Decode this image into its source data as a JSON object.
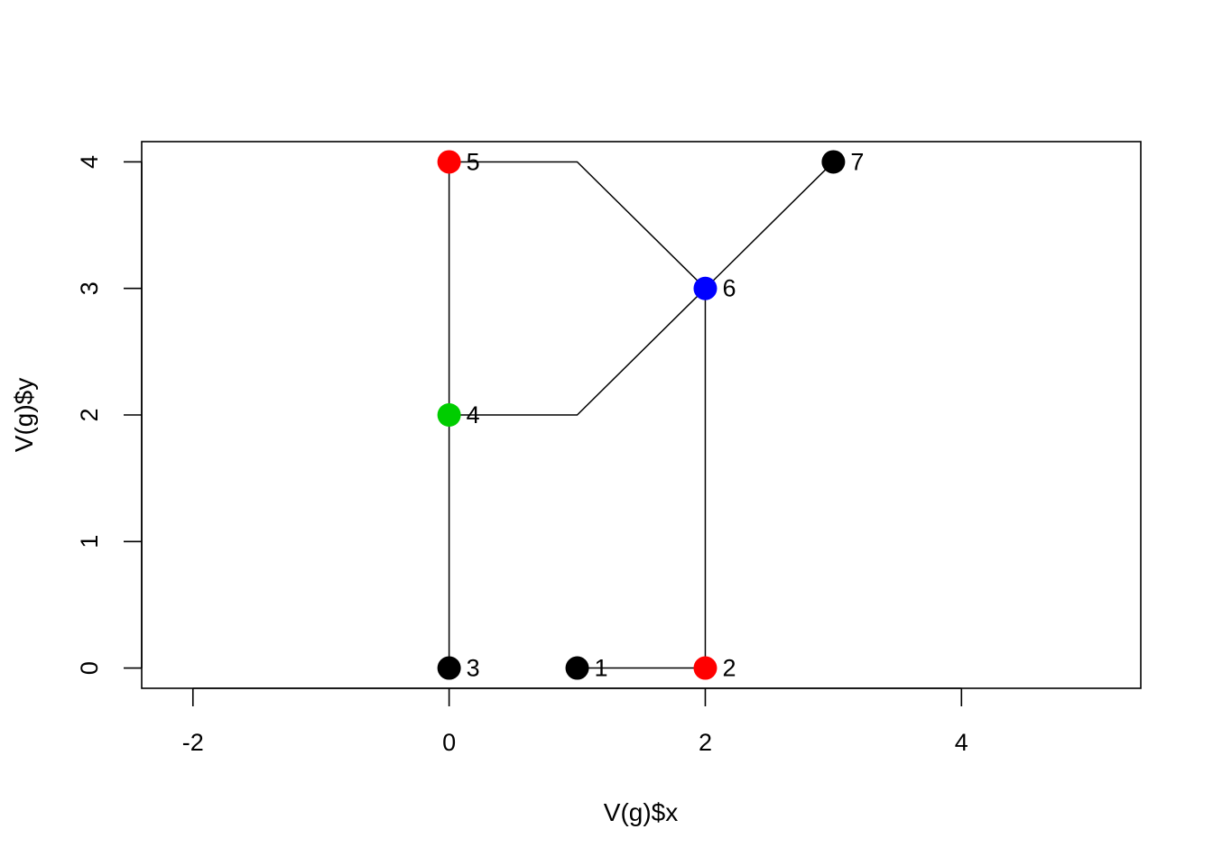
{
  "chart_data": {
    "type": "scatter",
    "xlabel": "V(g)$x",
    "ylabel": "V(g)$y",
    "xlim": [
      -2.4,
      5.4
    ],
    "ylim": [
      -0.16,
      4.16
    ],
    "x_ticks": [
      -2,
      0,
      2,
      4
    ],
    "y_ticks": [
      0,
      1,
      2,
      3,
      4
    ],
    "x_tick_labels": [
      "-2",
      "0",
      "2",
      "4"
    ],
    "y_tick_labels": [
      "0",
      "1",
      "2",
      "3",
      "4"
    ],
    "grid": false,
    "nodes": [
      {
        "label": "1",
        "x": 1,
        "y": 0,
        "color": "#000000"
      },
      {
        "label": "2",
        "x": 2,
        "y": 0,
        "color": "#ff0000"
      },
      {
        "label": "3",
        "x": 0,
        "y": 0,
        "color": "#000000"
      },
      {
        "label": "4",
        "x": 0,
        "y": 2,
        "color": "#00cd00"
      },
      {
        "label": "5",
        "x": 0,
        "y": 4,
        "color": "#ff0000"
      },
      {
        "label": "6",
        "x": 2,
        "y": 3,
        "color": "#0000ff"
      },
      {
        "label": "7",
        "x": 3,
        "y": 4,
        "color": "#000000"
      }
    ],
    "edges": [
      {
        "points": [
          [
            1,
            0
          ],
          [
            2,
            0
          ]
        ]
      },
      {
        "points": [
          [
            2,
            0
          ],
          [
            2,
            3
          ]
        ]
      },
      {
        "points": [
          [
            0,
            0
          ],
          [
            0,
            4
          ]
        ]
      },
      {
        "points": [
          [
            0,
            2
          ],
          [
            1,
            2
          ],
          [
            2,
            3
          ]
        ]
      },
      {
        "points": [
          [
            0,
            4
          ],
          [
            1,
            4
          ],
          [
            2,
            3
          ]
        ]
      },
      {
        "points": [
          [
            2,
            3
          ],
          [
            3,
            4
          ]
        ]
      }
    ]
  }
}
